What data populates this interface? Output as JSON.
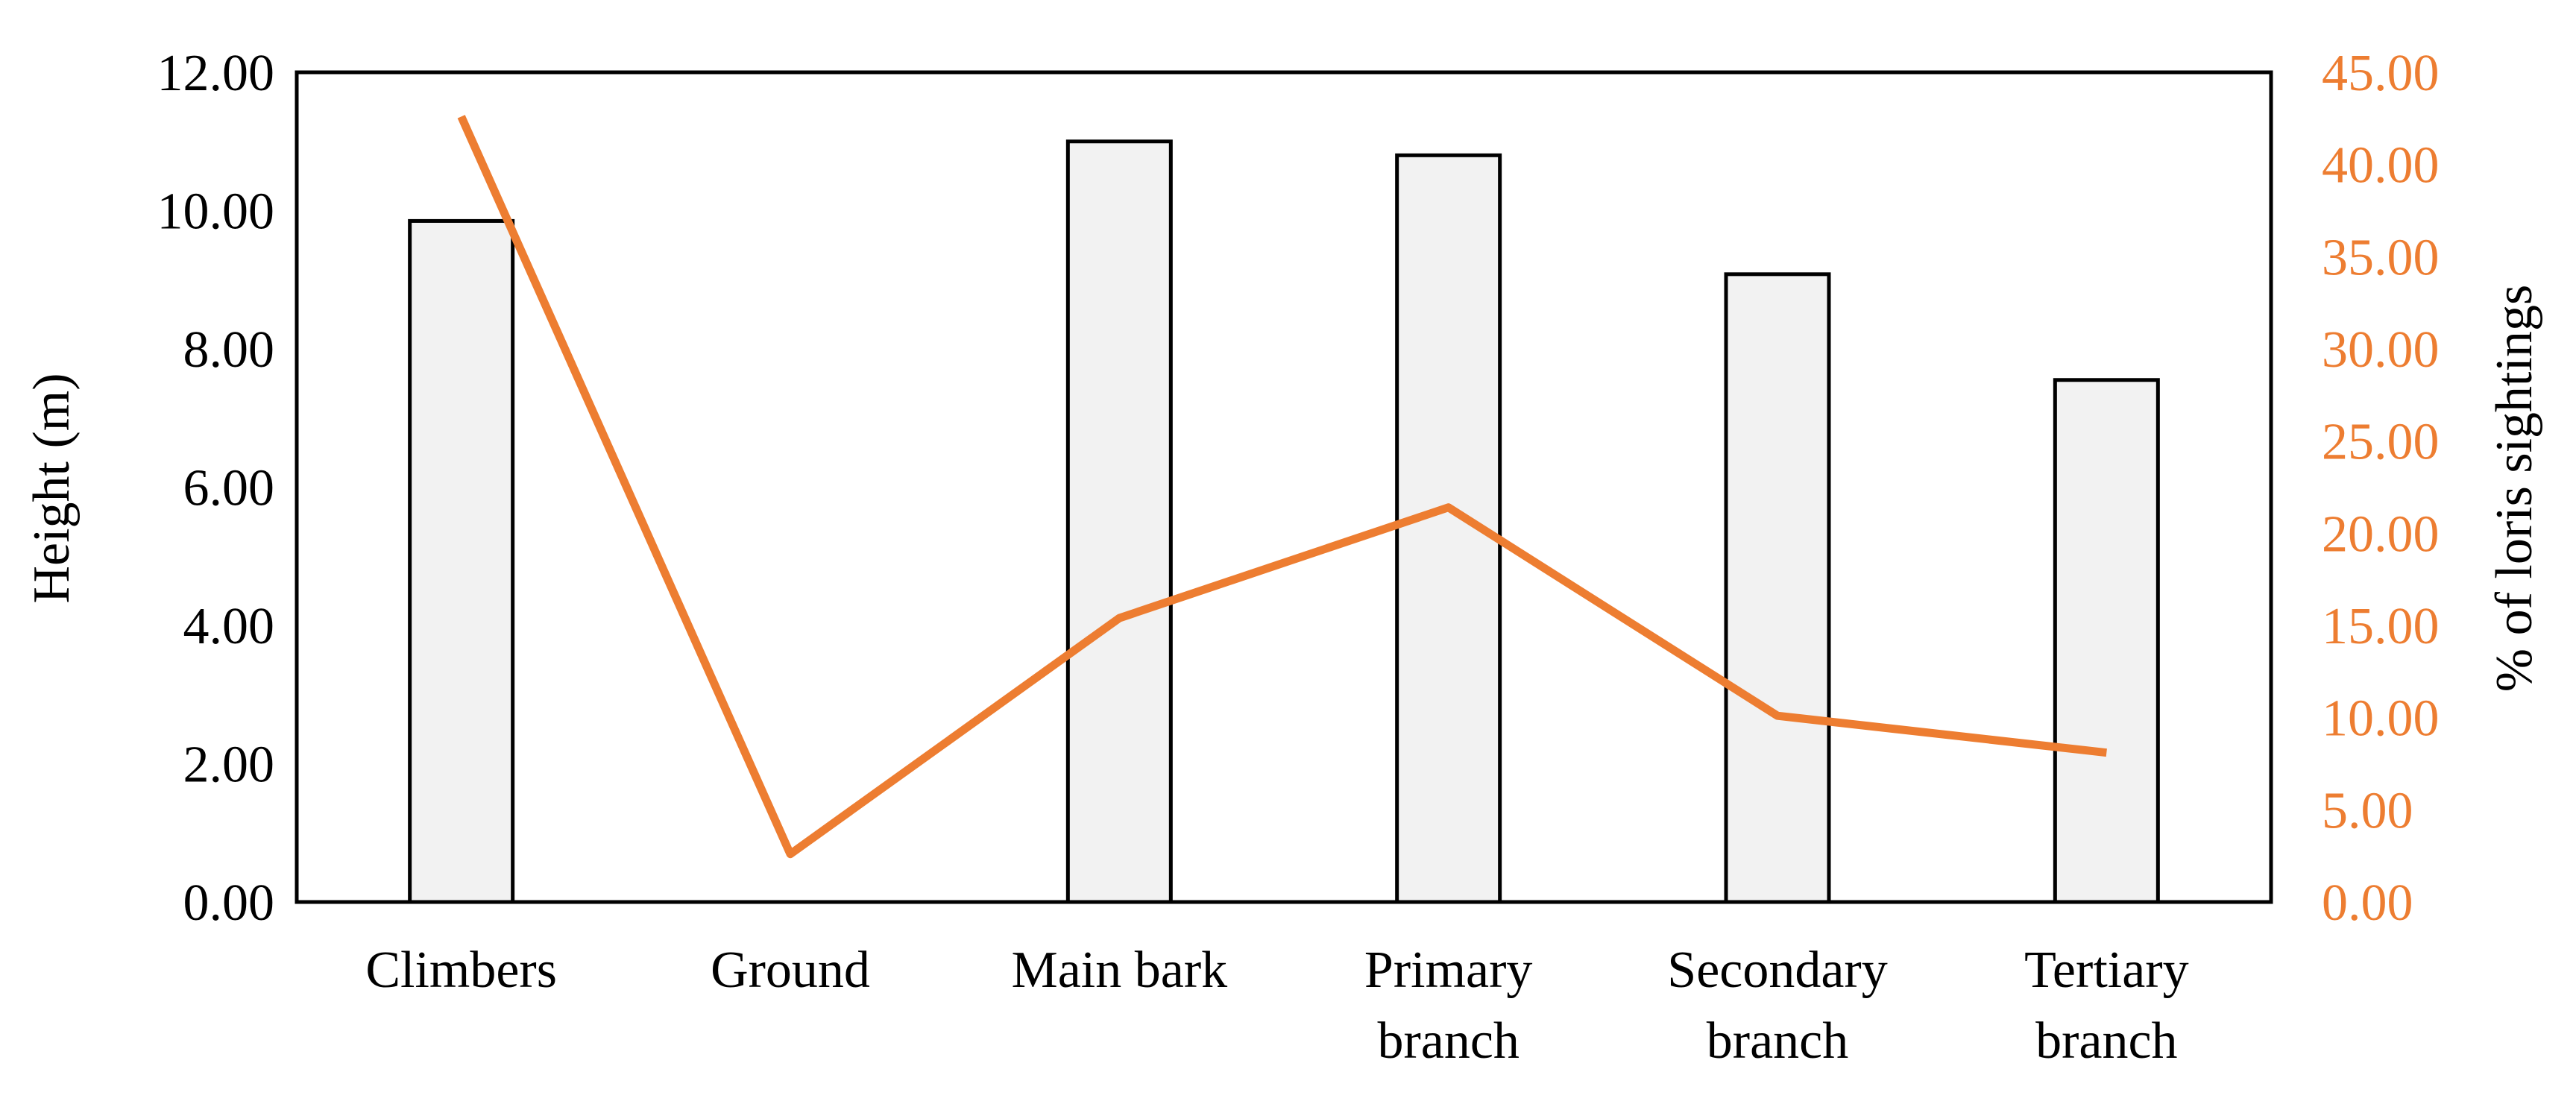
{
  "chart_data": {
    "type": "bar",
    "categories": [
      [
        "Climbers"
      ],
      [
        "Ground"
      ],
      [
        "Main bark"
      ],
      [
        "Primary",
        "branch"
      ],
      [
        "Secondary",
        "branch"
      ],
      [
        "Tertiary",
        "branch"
      ]
    ],
    "series": [
      {
        "type": "bar",
        "axis": "left",
        "values": [
          9.85,
          null,
          11.0,
          10.8,
          9.08,
          7.55
        ],
        "color": "#f2f2f2",
        "stroke": "#000000"
      },
      {
        "type": "line",
        "axis": "right",
        "values": [
          42.6,
          2.6,
          15.4,
          21.4,
          10.1,
          8.1
        ],
        "color": "#ed7d31"
      }
    ],
    "ylabel": "Height (m)",
    "y2label": "% of loris sightings",
    "ylim": [
      0,
      12
    ],
    "y2lim": [
      0,
      45
    ],
    "yticks": [
      "0.00",
      "2.00",
      "4.00",
      "6.00",
      "8.00",
      "10.00",
      "12.00"
    ],
    "y2ticks": [
      "0.00",
      "5.00",
      "10.00",
      "15.00",
      "20.00",
      "25.00",
      "30.00",
      "35.00",
      "40.00",
      "45.00"
    ],
    "left_axis_color": "#000000",
    "right_axis_color": "#ed7d31",
    "grid": false,
    "legend": false
  }
}
